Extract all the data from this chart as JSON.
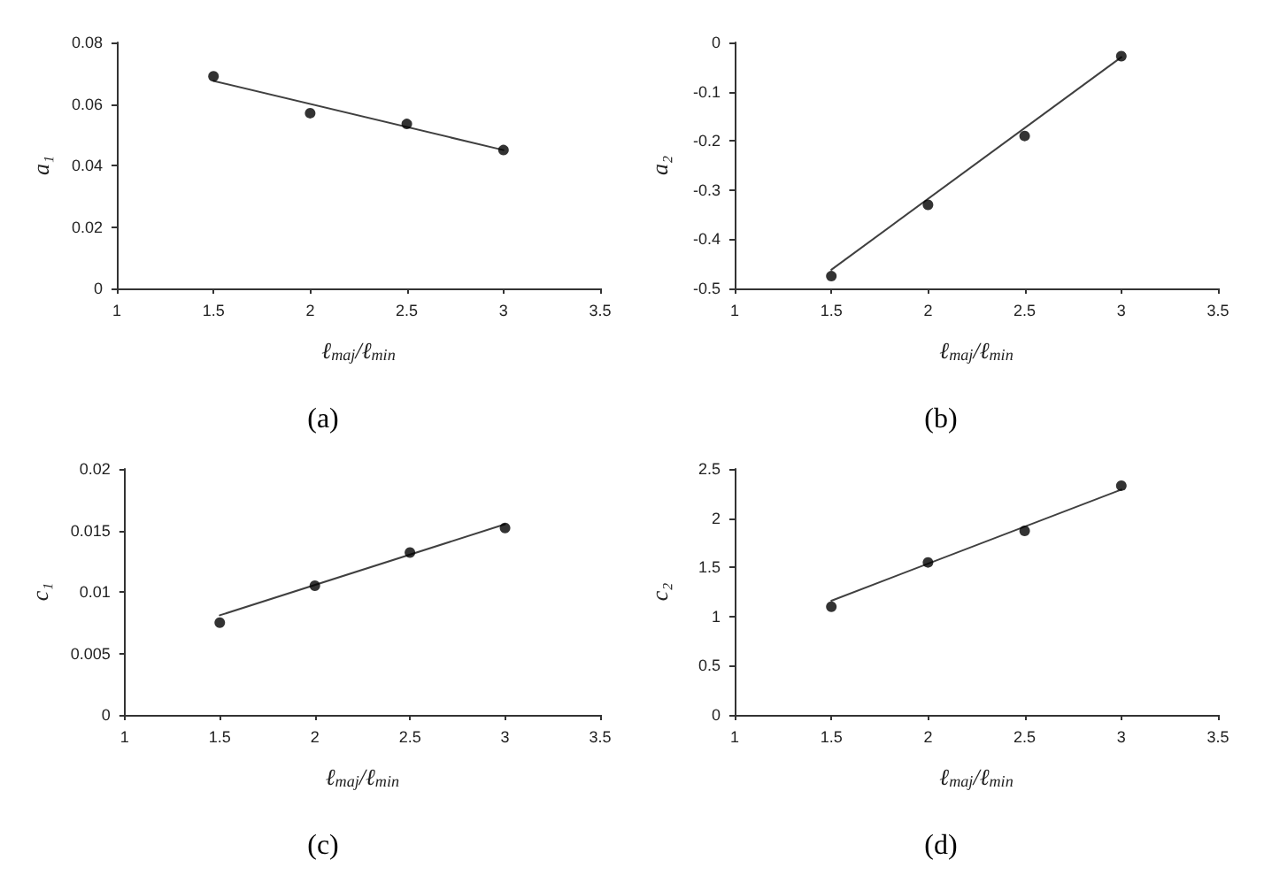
{
  "chart_data": [
    {
      "type": "scatter",
      "xlabel": "ℓ$_{maj}$/ℓ$_{min}$",
      "ylabel": "a₁",
      "annotations": [
        "(a)"
      ],
      "xlim": [
        1,
        3.5
      ],
      "xticks": [
        1,
        1.5,
        2,
        2.5,
        3,
        3.5
      ],
      "ylim": [
        0,
        0.08
      ],
      "yticks": [
        0,
        0.02,
        0.04,
        0.06,
        0.08
      ],
      "grid": false,
      "marker": "circle",
      "series": [
        {
          "color": "#000000",
          "x": [
            1.5,
            2,
            2.5,
            3
          ],
          "values": [
            0.069,
            0.057,
            0.0535,
            0.045
          ]
        },
        {
          "type": "line",
          "color": "#404040",
          "marker": "none",
          "x": [
            1.5,
            3
          ],
          "values": [
            0.0675,
            0.045
          ]
        }
      ]
    },
    {
      "type": "scatter",
      "xlabel": "ℓ$_{maj}$/ℓ$_{min}$",
      "ylabel": "a₂",
      "annotations": [
        "(b)"
      ],
      "xlim": [
        1,
        3.5
      ],
      "xticks": [
        1,
        1.5,
        2,
        2.5,
        3,
        3.5
      ],
      "ylim": [
        -0.5,
        0
      ],
      "yticks": [
        -0.5,
        -0.4,
        -0.3,
        -0.2,
        -0.1,
        0
      ],
      "grid": false,
      "marker": "circle",
      "series": [
        {
          "color": "#000000",
          "x": [
            1.5,
            2,
            2.5,
            3
          ],
          "values": [
            -0.475,
            -0.33,
            -0.19,
            -0.028
          ]
        },
        {
          "type": "line",
          "color": "#404040",
          "marker": "none",
          "x": [
            1.5,
            3
          ],
          "values": [
            -0.462,
            -0.03
          ]
        }
      ]
    },
    {
      "type": "scatter",
      "xlabel": "ℓ$_{maj}$/ℓ$_{min}$",
      "ylabel": "c₁",
      "annotations": [
        "(c)"
      ],
      "xlim": [
        1,
        3.5
      ],
      "xticks": [
        1,
        1.5,
        2,
        2.5,
        3,
        3.5
      ],
      "ylim": [
        0,
        0.02
      ],
      "yticks": [
        0,
        0.005,
        0.01,
        0.015,
        0.02
      ],
      "grid": false,
      "marker": "circle",
      "series": [
        {
          "color": "#000000",
          "x": [
            1.5,
            2,
            2.5,
            3
          ],
          "values": [
            0.0075,
            0.0105,
            0.0132,
            0.0152
          ]
        },
        {
          "type": "line",
          "color": "#404040",
          "marker": "none",
          "x": [
            1.5,
            3
          ],
          "values": [
            0.0081,
            0.0155
          ]
        }
      ]
    },
    {
      "type": "scatter",
      "xlabel": "ℓ$_{maj}$/ℓ$_{min}$",
      "ylabel": "c₂",
      "annotations": [
        "(d)"
      ],
      "xlim": [
        1,
        3.5
      ],
      "xticks": [
        1,
        1.5,
        2,
        2.5,
        3,
        3.5
      ],
      "ylim": [
        0,
        2.5
      ],
      "yticks": [
        0,
        0.5,
        1,
        1.5,
        2,
        2.5
      ],
      "grid": false,
      "marker": "circle",
      "series": [
        {
          "color": "#000000",
          "x": [
            1.5,
            2,
            2.5,
            3
          ],
          "values": [
            1.1,
            1.55,
            1.87,
            2.33
          ]
        },
        {
          "type": "line",
          "color": "#404040",
          "marker": "none",
          "x": [
            1.5,
            3
          ],
          "values": [
            1.16,
            2.29
          ]
        }
      ]
    }
  ]
}
